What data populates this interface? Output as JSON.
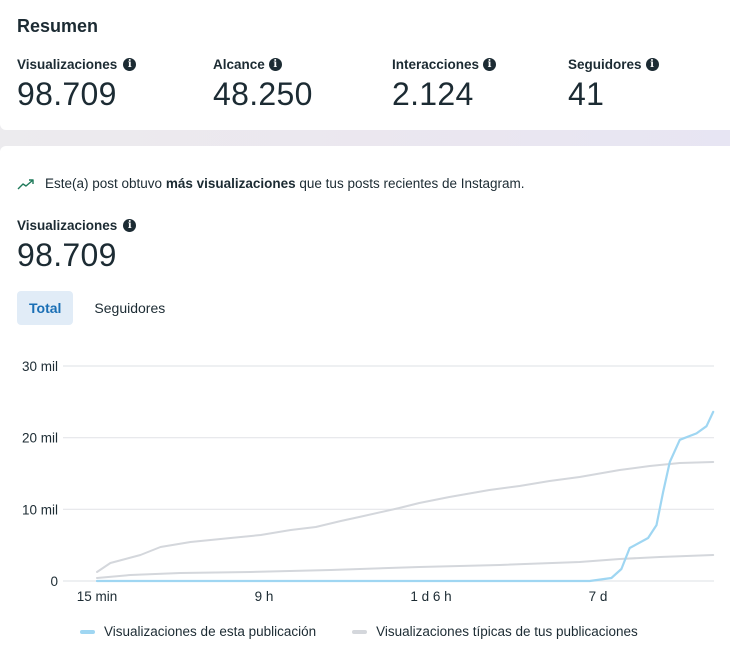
{
  "summary": {
    "title": "Resumen",
    "metrics": [
      {
        "label": "Visualizaciones",
        "value": "98.709",
        "icon": "info-icon"
      },
      {
        "label": "Alcance",
        "value": "48.250",
        "icon": "info-icon"
      },
      {
        "label": "Interacciones",
        "value": "2.124",
        "icon": "info-icon"
      },
      {
        "label": "Seguidores",
        "value": "41",
        "icon": "info-icon"
      }
    ]
  },
  "views": {
    "insight": {
      "icon": "trending-up-icon",
      "prefix": "Este(a) post obtuvo ",
      "bold": "más visualizaciones",
      "suffix": " que tus posts recientes de Instagram."
    },
    "metric_label": "Visualizaciones",
    "metric_value": "98.709",
    "tabs": [
      {
        "label": "Total",
        "active": true
      },
      {
        "label": "Seguidores",
        "active": false
      }
    ]
  },
  "colors": {
    "this_post": "#9fd6f2",
    "typical": "#d4d7dc",
    "grid": "#e4e6ea",
    "active_tab_bg": "#e1ecf7",
    "active_tab_text": "#1a6fb5",
    "trend_icon": "#1f7a5a"
  },
  "chart_data": {
    "type": "line",
    "title": "",
    "xlabel": "",
    "ylabel": "",
    "x_tick_labels": [
      "15 min",
      "9 h",
      "1 d 6 h",
      "7 d"
    ],
    "x_tick_positions": [
      0,
      1,
      2,
      3
    ],
    "xlim": [
      0,
      3.69
    ],
    "y_tick_labels": [
      "0",
      "10 mil",
      "20 mil",
      "30 mil"
    ],
    "y_ticks": [
      0,
      10000,
      20000,
      30000
    ],
    "ylim": [
      0,
      30000
    ],
    "grid": true,
    "legend_position": "bottom",
    "series": [
      {
        "name": "Visualizaciones de esta publicación",
        "color": "#9fd6f2",
        "x": [
          0,
          2.95,
          3.08,
          3.14,
          3.19,
          3.3,
          3.35,
          3.39,
          3.43,
          3.49,
          3.59,
          3.65,
          3.69
        ],
        "values": [
          0,
          0,
          420,
          1670,
          4600,
          6000,
          7800,
          12400,
          16600,
          19700,
          20600,
          21600,
          23600
        ]
      },
      {
        "name": "Visualizaciones típicas de tus publicaciones",
        "color": "#d4d7dc",
        "band": "upper",
        "x": [
          0,
          0.08,
          0.26,
          0.38,
          0.56,
          0.8,
          0.98,
          1.16,
          1.31,
          1.46,
          1.57,
          1.81,
          1.93,
          2.11,
          2.35,
          2.53,
          2.71,
          2.89,
          3.13,
          3.31,
          3.49,
          3.69
        ],
        "values": [
          1260,
          2510,
          3630,
          4740,
          5440,
          6000,
          6420,
          7120,
          7530,
          8370,
          8930,
          10190,
          10880,
          11720,
          12700,
          13260,
          13950,
          14510,
          15490,
          16050,
          16470,
          16600
        ]
      },
      {
        "name": "Visualizaciones típicas de tus publicaciones",
        "color": "#d4d7dc",
        "band": "lower",
        "x": [
          0,
          0.2,
          0.5,
          0.92,
          1.4,
          1.93,
          2.41,
          2.89,
          3.13,
          3.37,
          3.69
        ],
        "values": [
          420,
          840,
          1120,
          1260,
          1530,
          1950,
          2230,
          2650,
          3070,
          3350,
          3630
        ]
      }
    ],
    "legend": [
      {
        "label": "Visualizaciones de esta publicación",
        "color": "#9fd6f2"
      },
      {
        "label": "Visualizaciones típicas de tus publicaciones",
        "color": "#d4d7dc"
      }
    ]
  }
}
